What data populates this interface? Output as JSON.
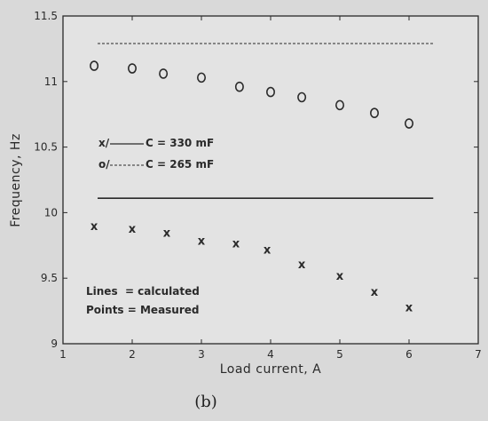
{
  "chart_data": {
    "type": "scatter",
    "xlabel": "Load current, A",
    "ylabel": "Frequency, Hz",
    "xlim": [
      1,
      7
    ],
    "ylim": [
      9,
      11.5
    ],
    "xticks": [
      "1",
      "2",
      "3",
      "4",
      "5",
      "6",
      "7"
    ],
    "yticks": [
      "9",
      "9.5",
      "10",
      "10.5",
      "11",
      "11.5"
    ],
    "grid": false,
    "series": [
      {
        "name": "C = 330 mF",
        "marker": "x",
        "role": "measured",
        "x": [
          1.45,
          2.0,
          2.5,
          3.0,
          3.5,
          3.95,
          4.45,
          5.0,
          5.5,
          6.0
        ],
        "y": [
          9.9,
          9.88,
          9.85,
          9.79,
          9.77,
          9.72,
          9.61,
          9.52,
          9.4,
          9.28
        ]
      },
      {
        "name": "C = 265 mF",
        "marker": "o",
        "role": "measured",
        "x": [
          1.45,
          2.0,
          2.45,
          3.0,
          3.55,
          4.0,
          4.45,
          5.0,
          5.5,
          6.0
        ],
        "y": [
          11.12,
          11.1,
          11.06,
          11.03,
          10.96,
          10.92,
          10.88,
          10.82,
          10.76,
          10.68
        ]
      },
      {
        "name": "C = 330 mF",
        "style": "solid",
        "role": "calculated",
        "x": [
          1.5,
          6.35
        ],
        "y": [
          10.11,
          10.11
        ]
      },
      {
        "name": "C = 265 mF",
        "style": "dashed",
        "role": "calculated",
        "x": [
          1.5,
          6.35
        ],
        "y": [
          11.29,
          11.29
        ]
      }
    ],
    "legend": {
      "placement": "left",
      "entries": [
        {
          "prefix": "x/",
          "line": "solid",
          "label": "C = 330 mF"
        },
        {
          "prefix": "o/",
          "line": "dashed",
          "label": "C = 265 mF"
        }
      ]
    },
    "annotations": [
      "Lines  = calculated",
      "Points = Measured"
    ],
    "caption": "(b)"
  },
  "colors": {
    "background": "#d9d9d9",
    "plot_area": "#e3e3e3",
    "ink": "#2a2a2a"
  }
}
